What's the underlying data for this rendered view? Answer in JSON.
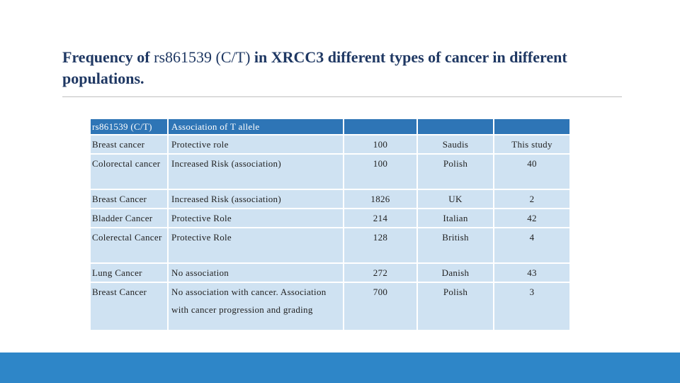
{
  "slide": {
    "title_bold_a": "Frequency of ",
    "title_plain": "rs861539 (C/T)",
    "title_bold_b": " in XRCC3 different types of cancer in different populations."
  },
  "table": {
    "header": {
      "col1": "rs861539 (C/T)",
      "col2": "Association of T allele",
      "col3": "",
      "col4": "",
      "col5": ""
    },
    "rows": [
      {
        "cancer": "Breast cancer",
        "association": "Protective role",
        "n": "100",
        "population": "Saudis",
        "ref": "This study"
      },
      {
        "cancer": "Colorectal cancer",
        "association": "Increased Risk (association)",
        "n": "100",
        "population": "Polish",
        "ref": "40"
      },
      {
        "cancer": "Breast Cancer",
        "association": "Increased Risk (association)",
        "n": "1826",
        "population": "UK",
        "ref": "2"
      },
      {
        "cancer": "Bladder Cancer",
        "association": "Protective Role",
        "n": "214",
        "population": "Italian",
        "ref": "42"
      },
      {
        "cancer": "Colerectal Cancer",
        "association": "Protective Role",
        "n": "128",
        "population": "British",
        "ref": "4"
      },
      {
        "cancer": "Lung Cancer",
        "association": "No association",
        "n": "272",
        "population": "Danish",
        "ref": "43"
      },
      {
        "cancer": "Breast Cancer",
        "association": "No association with cancer. Association with cancer progression and grading",
        "n": "700",
        "population": "Polish",
        "ref": "3"
      }
    ]
  },
  "colors": {
    "title": "#1f3863",
    "header_bg": "#2e75b6",
    "cell_bg": "#cfe2f2",
    "bottom_bar": "#2e86c8"
  }
}
